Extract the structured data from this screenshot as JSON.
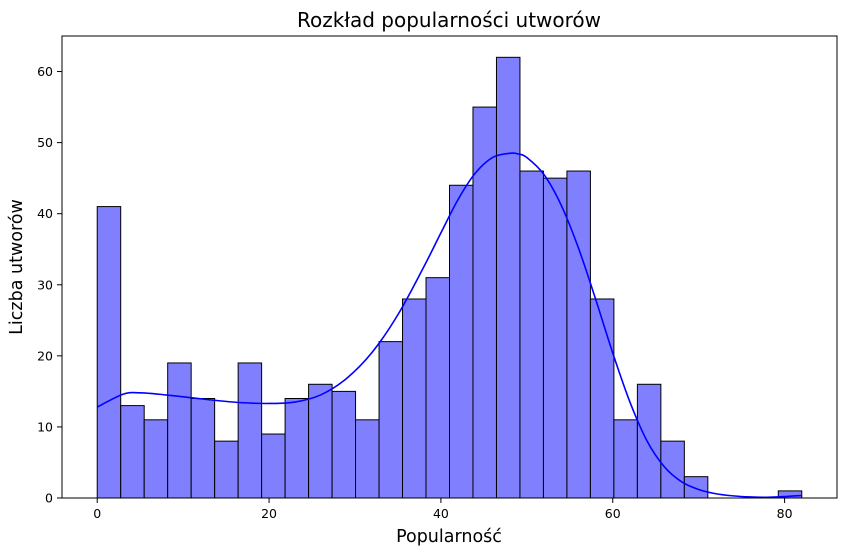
{
  "chart_data": {
    "type": "bar",
    "title": "Rozkład popularności utworów",
    "xlabel": "Popularność",
    "ylabel": "Liczba utworów",
    "xlim": [
      -4.1,
      86.1
    ],
    "ylim": [
      0,
      65
    ],
    "x_ticks": [
      0,
      20,
      40,
      60,
      80
    ],
    "y_ticks": [
      0,
      10,
      20,
      30,
      40,
      50,
      60
    ],
    "grid": false,
    "legend": "none",
    "bin_width": 2.733,
    "bins": [
      {
        "start": 0.0,
        "count": 41
      },
      {
        "start": 2.733,
        "count": 13
      },
      {
        "start": 5.467,
        "count": 11
      },
      {
        "start": 8.2,
        "count": 19
      },
      {
        "start": 10.933,
        "count": 14
      },
      {
        "start": 13.667,
        "count": 8
      },
      {
        "start": 16.4,
        "count": 19
      },
      {
        "start": 19.133,
        "count": 9
      },
      {
        "start": 21.867,
        "count": 14
      },
      {
        "start": 24.6,
        "count": 16
      },
      {
        "start": 27.333,
        "count": 15
      },
      {
        "start": 30.067,
        "count": 11
      },
      {
        "start": 32.8,
        "count": 22
      },
      {
        "start": 35.533,
        "count": 28
      },
      {
        "start": 38.267,
        "count": 31
      },
      {
        "start": 41.0,
        "count": 44
      },
      {
        "start": 43.733,
        "count": 55
      },
      {
        "start": 46.467,
        "count": 62
      },
      {
        "start": 49.2,
        "count": 46
      },
      {
        "start": 51.933,
        "count": 45
      },
      {
        "start": 54.667,
        "count": 46
      },
      {
        "start": 57.4,
        "count": 28
      },
      {
        "start": 60.133,
        "count": 11
      },
      {
        "start": 62.867,
        "count": 16
      },
      {
        "start": 65.6,
        "count": 8
      },
      {
        "start": 68.333,
        "count": 3
      },
      {
        "start": 71.067,
        "count": 0
      },
      {
        "start": 73.8,
        "count": 0
      },
      {
        "start": 76.533,
        "count": 0
      },
      {
        "start": 79.267,
        "count": 1
      }
    ],
    "kde": {
      "x": [
        0,
        3,
        5,
        8,
        11,
        14,
        17,
        20,
        23,
        26,
        29,
        32,
        35,
        38,
        40,
        42,
        44,
        46,
        48,
        49,
        50,
        52,
        54,
        56,
        58,
        60,
        62,
        64,
        66,
        68,
        70,
        72,
        74,
        76,
        78,
        80,
        82
      ],
      "y": [
        12.8,
        14.6,
        14.8,
        14.5,
        14.1,
        13.7,
        13.4,
        13.3,
        13.5,
        14.5,
        16.8,
        20.5,
        25.8,
        32.5,
        37.3,
        42.0,
        45.7,
        47.9,
        48.5,
        48.4,
        47.9,
        45.5,
        41.2,
        35.2,
        28.0,
        20.4,
        13.5,
        8.0,
        4.4,
        2.3,
        1.2,
        0.6,
        0.3,
        0.15,
        0.1,
        0.2,
        0.35
      ]
    },
    "colors": {
      "bar_fill": "#8080ff",
      "bar_edge": "#000000",
      "kde_line": "#0000ff",
      "axes": "#000000"
    }
  }
}
